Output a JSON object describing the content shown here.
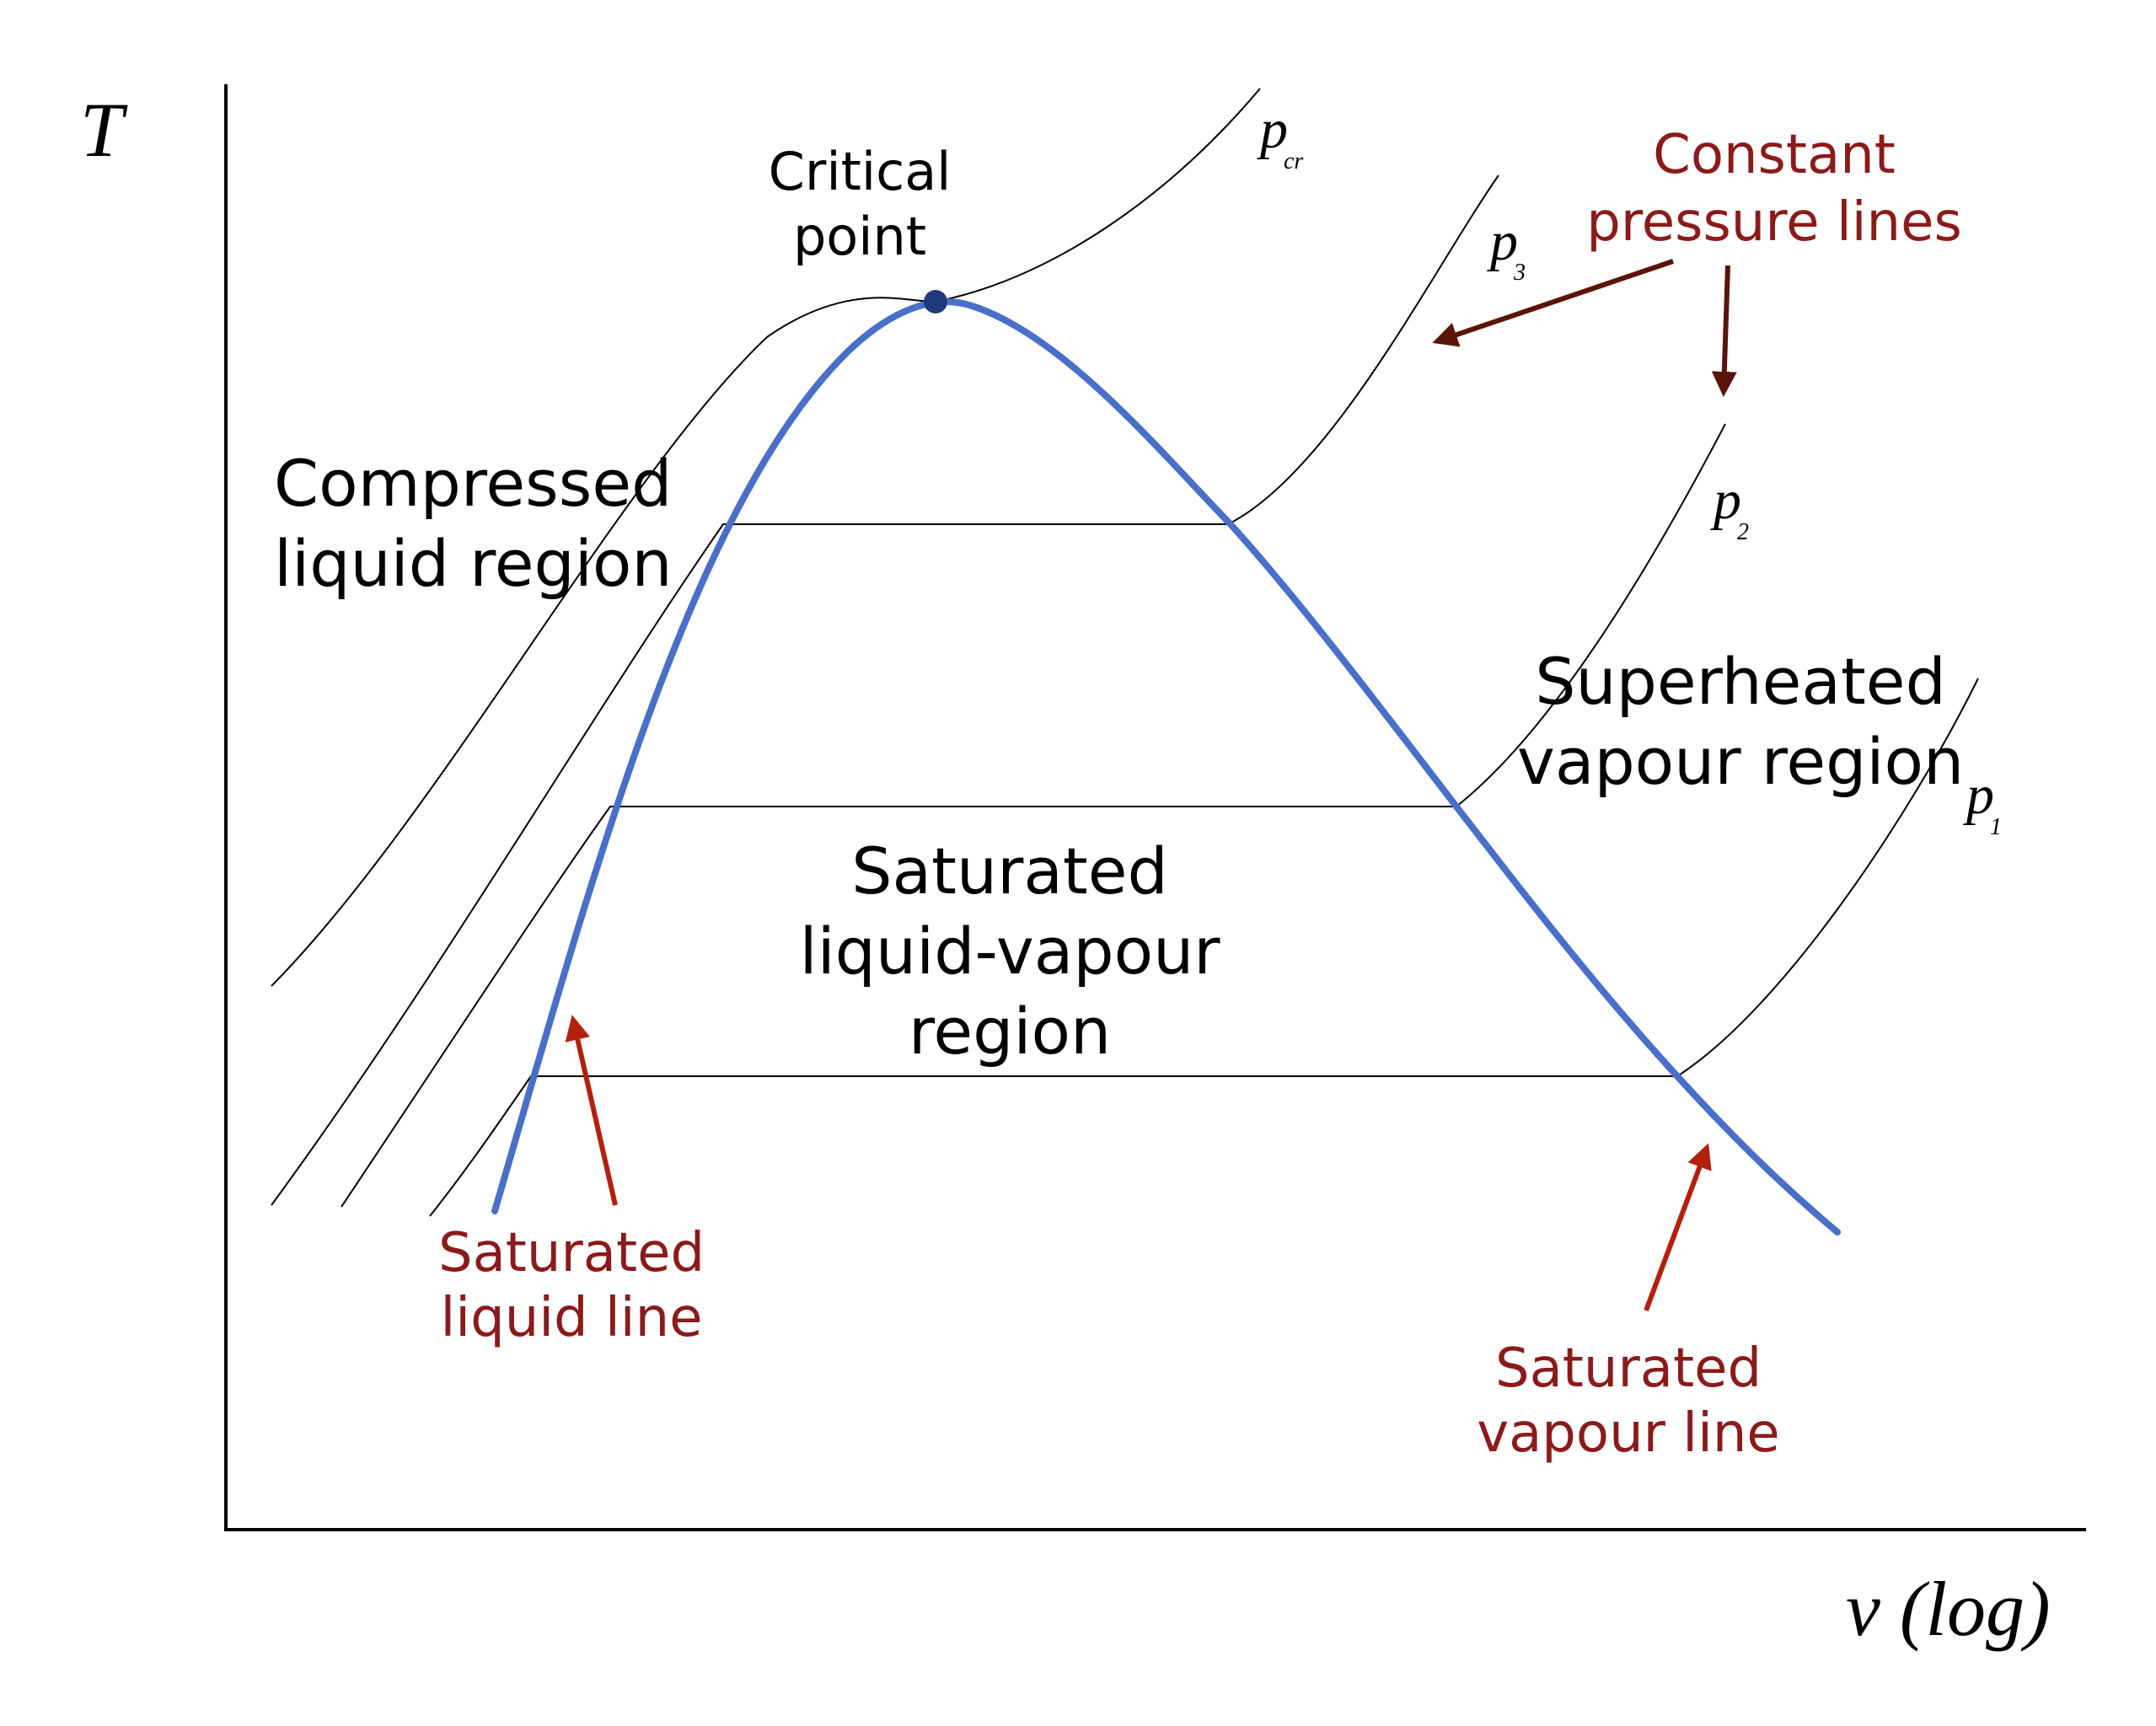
{
  "axes": {
    "y_label": "T",
    "x_label": "v (log)"
  },
  "critical_point": {
    "label_line1": "Critical",
    "label_line2": "point"
  },
  "pressure_lines": [
    {
      "symbol": "p",
      "subscript": "cr"
    },
    {
      "symbol": "p",
      "subscript": "3"
    },
    {
      "symbol": "p",
      "subscript": "2"
    },
    {
      "symbol": "p",
      "subscript": "1"
    }
  ],
  "regions": {
    "compressed_line1": "Compressed",
    "compressed_line2": "liquid region",
    "saturated_line1": "Saturated",
    "saturated_line2": "liquid-vapour",
    "saturated_line3": "region",
    "superheated_line1": "Superheated",
    "superheated_line2": "vapour region"
  },
  "annotations": {
    "constant_pressure_line1": "Constant",
    "constant_pressure_line2": "pressure lines",
    "sat_liquid_line1": "Saturated",
    "sat_liquid_line2": "liquid line",
    "sat_vapour_line1": "Saturated",
    "sat_vapour_line2": "vapour line"
  },
  "colors": {
    "dome": "#4a6fc8",
    "critical_point": "#1f3a7a",
    "annotation_text": "#8b1a1a",
    "annotation_arrow_red": "#b3200f",
    "annotation_arrow_brown": "#5a1408",
    "text": "#000000"
  }
}
